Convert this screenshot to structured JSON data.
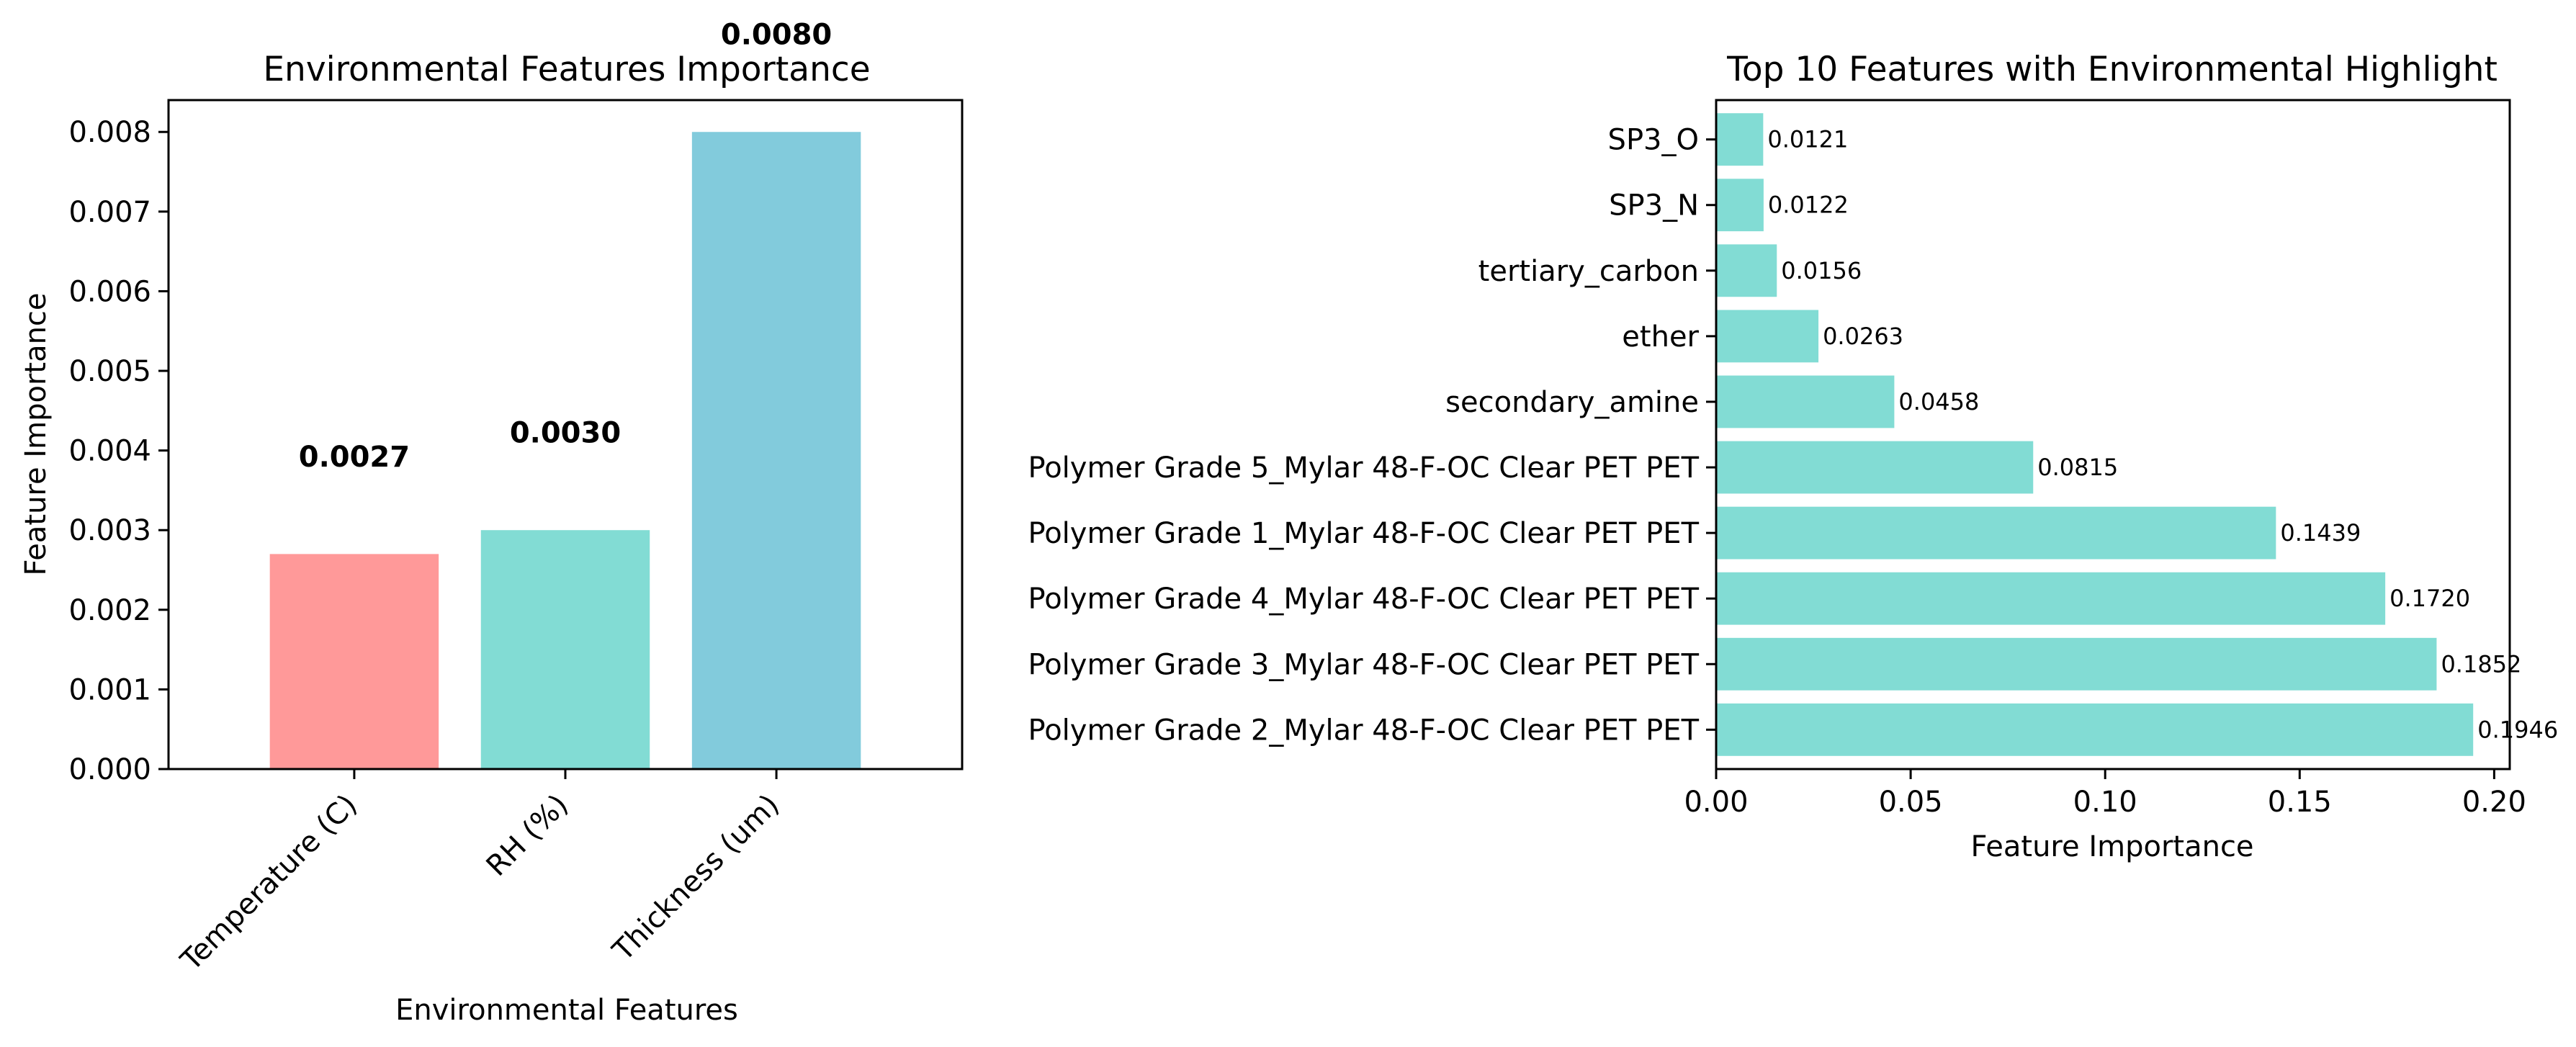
{
  "colors": {
    "temperature": "#ff9999",
    "rh": "#82dcd4",
    "thickness": "#82cbdc",
    "top10": "#82dcd4"
  },
  "chart_data": [
    {
      "type": "bar",
      "title": "Environmental Features Importance",
      "xlabel": "Environmental Features",
      "ylabel": "Feature Importance",
      "categories": [
        "Temperature (C)",
        "RH (%)",
        "Thickness (um)"
      ],
      "values": [
        0.0027,
        0.003,
        0.008
      ],
      "value_labels": [
        "0.0027",
        "0.0030",
        "0.0080"
      ],
      "ylim": [
        0,
        0.0084
      ],
      "yticks": [
        0.0,
        0.001,
        0.002,
        0.003,
        0.004,
        0.005,
        0.006,
        0.007,
        0.008
      ],
      "ytick_labels": [
        "0.000",
        "0.001",
        "0.002",
        "0.003",
        "0.004",
        "0.005",
        "0.006",
        "0.007",
        "0.008"
      ],
      "grid": false
    },
    {
      "type": "bar",
      "orientation": "horizontal",
      "title": "Top 10 Features with Environmental Highlight",
      "xlabel": "Feature Importance",
      "ylabel": "",
      "categories": [
        "Polymer Grade 2_Mylar 48-F-OC Clear PET PET",
        "Polymer Grade 3_Mylar 48-F-OC Clear PET PET",
        "Polymer Grade 4_Mylar 48-F-OC Clear PET PET",
        "Polymer Grade 1_Mylar 48-F-OC Clear PET PET",
        "Polymer Grade 5_Mylar 48-F-OC Clear PET PET",
        "secondary_amine",
        "ether",
        "tertiary_carbon",
        "SP3_N",
        "SP3_O"
      ],
      "values": [
        0.1946,
        0.1852,
        0.172,
        0.1439,
        0.0815,
        0.0458,
        0.0263,
        0.0156,
        0.0122,
        0.0121
      ],
      "value_labels": [
        "0.1946",
        "0.1852",
        "0.1720",
        "0.1439",
        "0.0815",
        "0.0458",
        "0.0263",
        "0.0156",
        "0.0122",
        "0.0121"
      ],
      "xlim": [
        0,
        0.204
      ],
      "xticks": [
        0.0,
        0.05,
        0.1,
        0.15,
        0.2
      ],
      "xtick_labels": [
        "0.00",
        "0.05",
        "0.10",
        "0.15",
        "0.20"
      ],
      "grid": false
    }
  ]
}
